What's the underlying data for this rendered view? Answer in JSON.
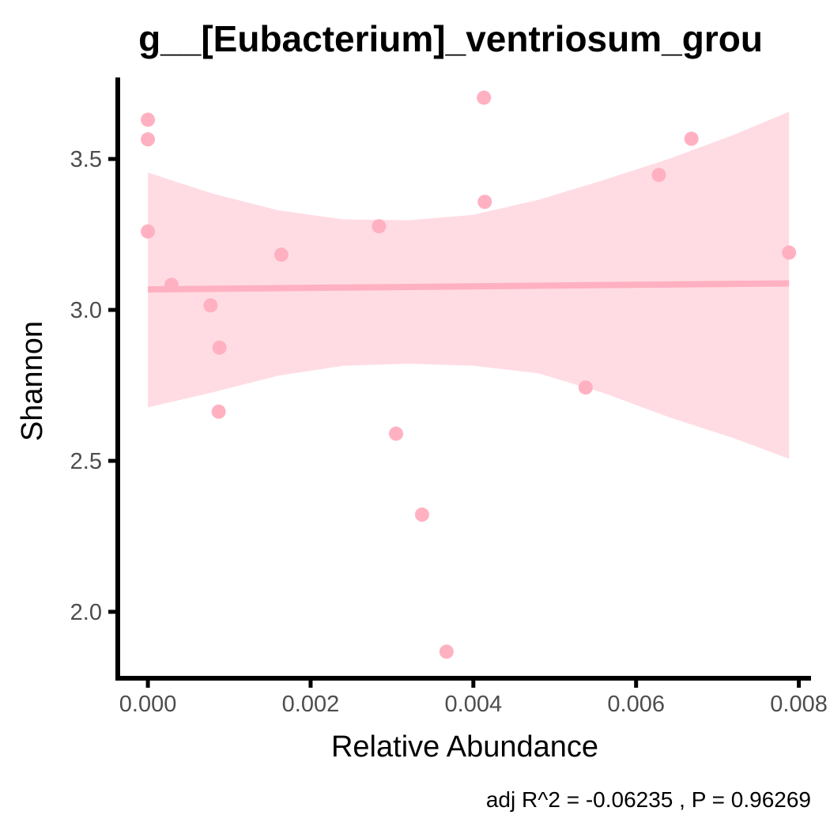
{
  "chart_data": {
    "type": "scatter",
    "title": "g__[Eubacterium]_ventriosum_grou",
    "xlabel": "Relative Abundance",
    "ylabel": "Shannon",
    "xlim": [
      -0.00037,
      0.00815
    ],
    "ylim": [
      1.78,
      3.77
    ],
    "x_ticks": [
      0.0,
      0.002,
      0.004,
      0.006,
      0.008
    ],
    "x_tick_labels": [
      "0.000",
      "0.002",
      "0.004",
      "0.006",
      "0.008"
    ],
    "y_ticks": [
      2.0,
      2.5,
      3.0,
      3.5
    ],
    "y_tick_labels": [
      "2.0",
      "2.5",
      "3.0",
      "3.5"
    ],
    "grid": false,
    "legend": "none",
    "caption": "adj R^2 =  -0.06235 , P = 0.96269",
    "points": [
      {
        "x": 0.0,
        "y": 3.63
      },
      {
        "x": 0.0,
        "y": 3.565
      },
      {
        "x": 0.0,
        "y": 3.26
      },
      {
        "x": 0.00029,
        "y": 3.083
      },
      {
        "x": 0.00077,
        "y": 3.015
      },
      {
        "x": 0.00088,
        "y": 2.875
      },
      {
        "x": 0.00087,
        "y": 2.663
      },
      {
        "x": 0.00164,
        "y": 3.183
      },
      {
        "x": 0.00284,
        "y": 3.277
      },
      {
        "x": 0.00305,
        "y": 2.59
      },
      {
        "x": 0.00337,
        "y": 2.322
      },
      {
        "x": 0.00367,
        "y": 1.868
      },
      {
        "x": 0.00413,
        "y": 3.703
      },
      {
        "x": 0.00414,
        "y": 3.358
      },
      {
        "x": 0.00538,
        "y": 2.743
      },
      {
        "x": 0.00628,
        "y": 3.447
      },
      {
        "x": 0.00668,
        "y": 3.567
      },
      {
        "x": 0.00788,
        "y": 3.19
      }
    ],
    "fit": {
      "x": [
        0.0,
        0.00788
      ],
      "y": [
        3.068,
        3.088
      ]
    },
    "ci_band": {
      "x": [
        0.0,
        0.0008,
        0.0016,
        0.0024,
        0.0032,
        0.004,
        0.0048,
        0.0056,
        0.0064,
        0.0072,
        0.00788
      ],
      "upper": [
        3.455,
        3.385,
        3.33,
        3.3,
        3.297,
        3.315,
        3.365,
        3.43,
        3.5,
        3.58,
        3.657
      ],
      "lower": [
        2.677,
        2.727,
        2.782,
        2.815,
        2.822,
        2.815,
        2.79,
        2.725,
        2.645,
        2.575,
        2.507
      ]
    },
    "colors": {
      "point": "#ffb1c1",
      "fit_line": "#ffb1c1",
      "band": "#ffdce3",
      "axis": "#000000",
      "tick_label": "#4d4d4d"
    }
  }
}
